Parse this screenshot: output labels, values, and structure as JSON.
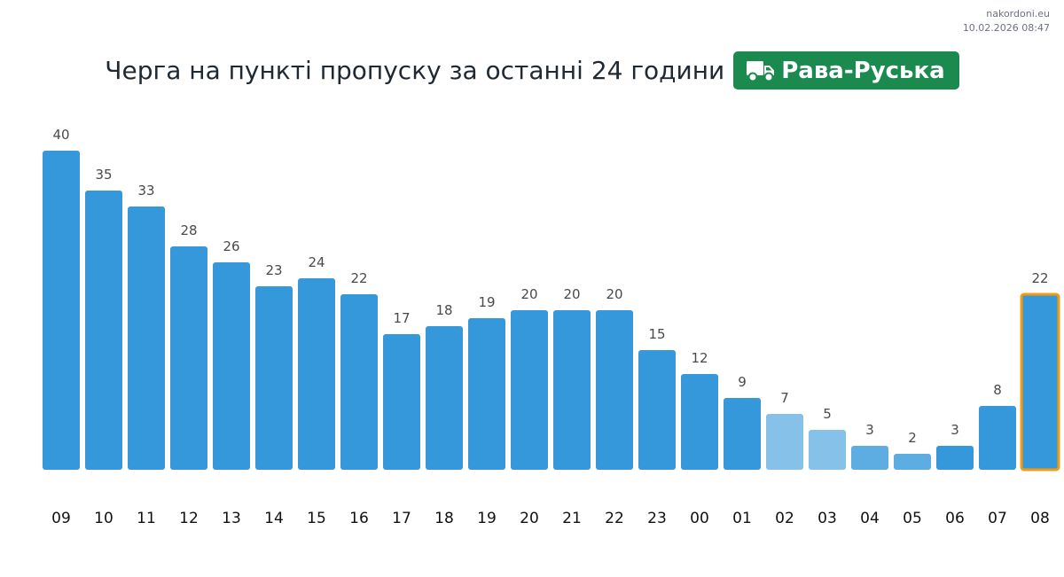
{
  "source": {
    "site": "nakordoni.eu",
    "timestamp": "10.02.2026 08:47"
  },
  "header": {
    "title": "Черга на пункті пропуску за останні 24 години",
    "checkpoint": "Рава-Руська",
    "checkpoint_icon": "truck-icon"
  },
  "colors": {
    "bar": "#3598db",
    "bar_light": "#85c1e9",
    "bar_mid": "#5dade2",
    "highlight_border": "#f39c12",
    "badge": "#1a8a4f"
  },
  "chart_data": {
    "type": "bar",
    "title": "",
    "xlabel": "",
    "ylabel": "",
    "categories": [
      "09",
      "10",
      "11",
      "12",
      "13",
      "14",
      "15",
      "16",
      "17",
      "18",
      "19",
      "20",
      "21",
      "22",
      "23",
      "00",
      "01",
      "02",
      "03",
      "04",
      "05",
      "06",
      "07",
      "08"
    ],
    "values": [
      40,
      35,
      33,
      28,
      26,
      23,
      24,
      22,
      17,
      18,
      19,
      20,
      20,
      20,
      15,
      12,
      9,
      7,
      5,
      3,
      2,
      3,
      8,
      22
    ],
    "ylim": [
      0,
      40
    ],
    "grid": false,
    "legend": "none",
    "data_labels": true,
    "highlighted_category": "08",
    "bar_shades": [
      "dark",
      "dark",
      "dark",
      "dark",
      "dark",
      "dark",
      "dark",
      "dark",
      "dark",
      "dark",
      "dark",
      "dark",
      "dark",
      "dark",
      "dark",
      "dark",
      "dark",
      "light",
      "light",
      "mid",
      "mid",
      "dark",
      "dark",
      "dark"
    ]
  }
}
